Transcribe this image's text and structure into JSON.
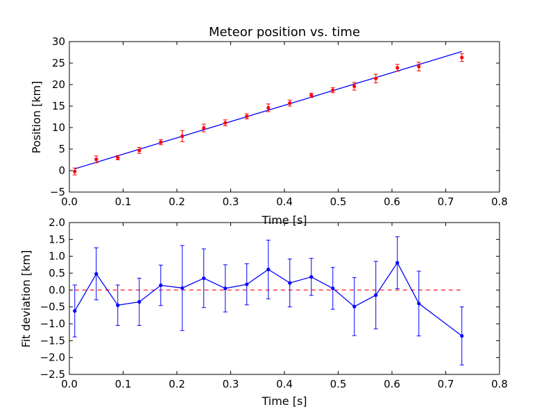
{
  "chart_data": [
    {
      "type": "scatter",
      "title": "Meteor position vs. time",
      "xlabel": "Time [s]",
      "ylabel": "Position [km]",
      "xlim": [
        0,
        0.8
      ],
      "ylim": [
        -5,
        30
      ],
      "xticks": [
        "0.0",
        "0.1",
        "0.2",
        "0.3",
        "0.4",
        "0.5",
        "0.6",
        "0.7",
        "0.8"
      ],
      "yticks": [
        "−5",
        "0",
        "5",
        "10",
        "15",
        "20",
        "25",
        "30"
      ],
      "grid": false,
      "colors": {
        "points": "#ff0000",
        "fit": "#0000ff"
      },
      "points": {
        "x": [
          0.01,
          0.05,
          0.09,
          0.13,
          0.17,
          0.21,
          0.25,
          0.29,
          0.33,
          0.37,
          0.41,
          0.45,
          0.49,
          0.53,
          0.57,
          0.61,
          0.65,
          0.73
        ],
        "y": [
          -0.2,
          2.6,
          3.0,
          4.7,
          6.6,
          8.0,
          9.9,
          11.1,
          12.6,
          14.6,
          15.7,
          17.5,
          18.7,
          19.6,
          21.4,
          23.9,
          24.2,
          26.3
        ],
        "yerr": [
          0.8,
          0.8,
          0.5,
          0.7,
          0.6,
          1.3,
          0.9,
          0.7,
          0.6,
          0.9,
          0.7,
          0.5,
          0.6,
          0.9,
          1.0,
          0.8,
          1.0,
          0.9
        ]
      },
      "fit_line": {
        "x": [
          0.01,
          0.73
        ],
        "y": [
          0.4,
          27.7
        ]
      }
    },
    {
      "type": "line",
      "title": "",
      "xlabel": "Time [s]",
      "ylabel": "Fit deviation [km]",
      "xlim": [
        0,
        0.8
      ],
      "ylim": [
        -2.5,
        2.0
      ],
      "xticks": [
        "0.0",
        "0.1",
        "0.2",
        "0.3",
        "0.4",
        "0.5",
        "0.6",
        "0.7",
        "0.8"
      ],
      "yticks": [
        "−2.5",
        "−2.0",
        "−1.5",
        "−1.0",
        "−0.5",
        "0.0",
        "0.5",
        "1.0",
        "1.5",
        "2.0"
      ],
      "grid": false,
      "colors": {
        "series": "#0000ff",
        "zero_line": "#ff0000"
      },
      "reference_line": {
        "y": 0,
        "style": "dashed"
      },
      "series": [
        {
          "x": [
            0.01,
            0.05,
            0.09,
            0.13,
            0.17,
            0.21,
            0.25,
            0.29,
            0.33,
            0.37,
            0.41,
            0.45,
            0.49,
            0.53,
            0.57,
            0.61,
            0.65,
            0.73
          ],
          "y": [
            -0.62,
            0.48,
            -0.45,
            -0.35,
            0.14,
            0.06,
            0.35,
            0.05,
            0.17,
            0.61,
            0.21,
            0.39,
            0.05,
            -0.49,
            -0.15,
            0.81,
            -0.4,
            -1.36
          ],
          "yerr": [
            0.77,
            0.77,
            0.6,
            0.7,
            0.6,
            1.26,
            0.87,
            0.7,
            0.61,
            0.87,
            0.71,
            0.55,
            0.62,
            0.86,
            1.0,
            0.77,
            0.96,
            0.86
          ]
        }
      ]
    }
  ]
}
